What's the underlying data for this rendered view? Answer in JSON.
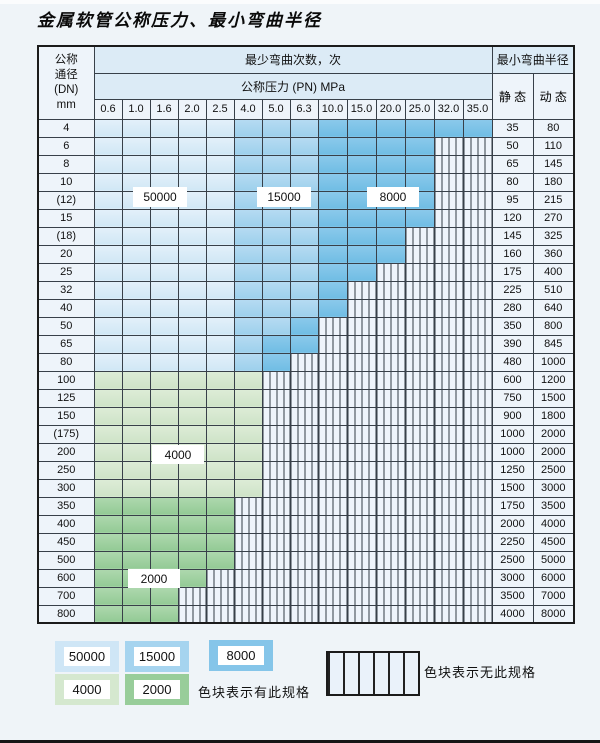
{
  "title": "金属软管公称压力、最小弯曲半径",
  "colors": {
    "blue_50000": "#d0e7f5",
    "blue_15000": "#9dd0ec",
    "blue_8000": "#70bde4",
    "green_4000": "#cee3c7",
    "green_2000": "#93ca95",
    "no_spec_bg": "#eef4fb",
    "header_bg": "#dcebf6"
  },
  "table": {
    "corner_header": "公称\n通径\n(DN)\nmm",
    "bend_cycles_header": "最少弯曲次数，次",
    "pressure_header": "公称压力 (PN) MPa",
    "radius_header": "最小弯曲半径",
    "static_header": "静 态",
    "dynamic_header": "动 态",
    "pressure_columns": [
      "0.6",
      "1.0",
      "1.6",
      "2.0",
      "2.5",
      "4.0",
      "5.0",
      "6.3",
      "10.0",
      "15.0",
      "20.0",
      "25.0",
      "32.0",
      "35.0"
    ],
    "cell_code_legend": {
      "L": "50000",
      "M": "15000",
      "D": "8000",
      "G": "4000",
      "g": "2000",
      "H": "no-spec"
    },
    "rows": [
      {
        "dn": "4",
        "cells": "LLLLLMMMDDDDDD",
        "static": "35",
        "dynamic": "80"
      },
      {
        "dn": "6",
        "cells": "LLLLLMMMDDDDHH",
        "static": "50",
        "dynamic": "110"
      },
      {
        "dn": "8",
        "cells": "LLLLLMMMDDDDHH",
        "static": "65",
        "dynamic": "145"
      },
      {
        "dn": "10",
        "cells": "LLLLLMMMDDDDHH",
        "static": "80",
        "dynamic": "180"
      },
      {
        "dn": "(12)",
        "cells": "LLLLLMMMDDDDHH",
        "static": "95",
        "dynamic": "215"
      },
      {
        "dn": "15",
        "cells": "LLLLLMMMDDDDHH",
        "static": "120",
        "dynamic": "270"
      },
      {
        "dn": "(18)",
        "cells": "LLLLLMMMDDDHHH",
        "static": "145",
        "dynamic": "325"
      },
      {
        "dn": "20",
        "cells": "LLLLLMMMDDDHHH",
        "static": "160",
        "dynamic": "360"
      },
      {
        "dn": "25",
        "cells": "LLLLLMMMDDHHHH",
        "static": "175",
        "dynamic": "400"
      },
      {
        "dn": "32",
        "cells": "LLLLLMMMDHHHHH",
        "static": "225",
        "dynamic": "510"
      },
      {
        "dn": "40",
        "cells": "LLLLLMMMDHHHHH",
        "static": "280",
        "dynamic": "640"
      },
      {
        "dn": "50",
        "cells": "LLLLLMMDHHHHHH",
        "static": "350",
        "dynamic": "800"
      },
      {
        "dn": "65",
        "cells": "LLLLLMDDHHHHHH",
        "static": "390",
        "dynamic": "845"
      },
      {
        "dn": "80",
        "cells": "LLLLLMDHHHHHHH",
        "static": "480",
        "dynamic": "1000"
      },
      {
        "dn": "100",
        "cells": "GGGGGGHHHHHHHH",
        "static": "600",
        "dynamic": "1200"
      },
      {
        "dn": "125",
        "cells": "GGGGGGHHHHHHHH",
        "static": "750",
        "dynamic": "1500"
      },
      {
        "dn": "150",
        "cells": "GGGGGGHHHHHHHH",
        "static": "900",
        "dynamic": "1800"
      },
      {
        "dn": "(175)",
        "cells": "GGGGGGHHHHHHHH",
        "static": "1000",
        "dynamic": "2000"
      },
      {
        "dn": "200",
        "cells": "GGGGGGHHHHHHHH",
        "static": "1000",
        "dynamic": "2000"
      },
      {
        "dn": "250",
        "cells": "GGGGGGHHHHHHHH",
        "static": "1250",
        "dynamic": "2500"
      },
      {
        "dn": "300",
        "cells": "GGGGGGHHHHHHHH",
        "static": "1500",
        "dynamic": "3000"
      },
      {
        "dn": "350",
        "cells": "gggggHHHHHHHHH",
        "static": "1750",
        "dynamic": "3500"
      },
      {
        "dn": "400",
        "cells": "gggggHHHHHHHHH",
        "static": "2000",
        "dynamic": "4000"
      },
      {
        "dn": "450",
        "cells": "gggggHHHHHHHHH",
        "static": "2250",
        "dynamic": "4500"
      },
      {
        "dn": "500",
        "cells": "gggggHHHHHHHHH",
        "static": "2500",
        "dynamic": "5000"
      },
      {
        "dn": "600",
        "cells": "ggggHHHHHHHHHH",
        "static": "3000",
        "dynamic": "6000"
      },
      {
        "dn": "700",
        "cells": "gggHHHHHHHHHHH",
        "static": "3500",
        "dynamic": "7000"
      },
      {
        "dn": "800",
        "cells": "gggHHHHHHHHHHH",
        "static": "4000",
        "dynamic": "8000"
      }
    ]
  },
  "zone_labels": [
    "50000",
    "15000",
    "8000",
    "4000",
    "2000"
  ],
  "legend": {
    "has_spec_items": [
      {
        "label": "50000",
        "color_key": "L"
      },
      {
        "label": "15000",
        "color_key": "M"
      },
      {
        "label": "8000",
        "color_key": "D"
      },
      {
        "label": "4000",
        "color_key": "G"
      },
      {
        "label": "2000",
        "color_key": "g"
      }
    ],
    "has_spec_text": "色块表示有此规格",
    "no_spec_text": "色块表示无此规格"
  }
}
